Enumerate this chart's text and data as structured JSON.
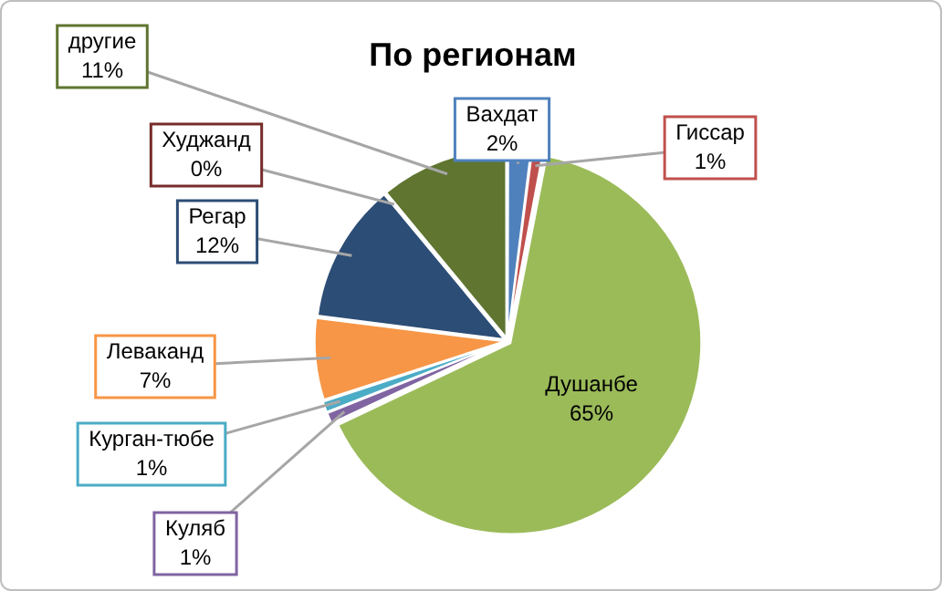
{
  "chart_data": {
    "type": "pie",
    "title": "По регионам",
    "categories": [
      "Вахдат",
      "Гиссар",
      "Душанбе",
      "Куляб",
      "Курган-тюбе",
      "Леваканд",
      "Регар",
      "Худжанд",
      "другие"
    ],
    "values": [
      2,
      1,
      65,
      1,
      1,
      7,
      12,
      0,
      11
    ],
    "colors": [
      "#4f81bd",
      "#c0504d",
      "#9bbb59",
      "#8064a2",
      "#4bacc6",
      "#f79646",
      "#2c4d75",
      "#772c2a",
      "#5f7530"
    ],
    "value_labels": [
      "2%",
      "1%",
      "65%",
      "1%",
      "1%",
      "7%",
      "12%",
      "0%",
      "11%"
    ],
    "legend": false
  }
}
